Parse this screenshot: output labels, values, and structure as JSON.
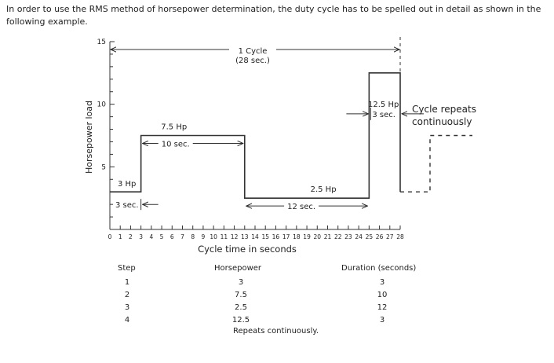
{
  "intro_text": "In order to use the RMS method of horsepower determination, the duty cycle has to be spelled out in detail as shown in the following example.",
  "chart_data": {
    "type": "step",
    "title": "",
    "xlabel": "Cycle time in seconds",
    "ylabel": "Horsepower load",
    "xlim": [
      0,
      28
    ],
    "ylim": [
      0,
      15
    ],
    "x_ticks": [
      0,
      1,
      2,
      3,
      4,
      5,
      6,
      7,
      8,
      9,
      10,
      11,
      12,
      13,
      14,
      15,
      16,
      17,
      18,
      19,
      20,
      21,
      22,
      23,
      24,
      25,
      26,
      27,
      28
    ],
    "y_ticks": [
      5,
      10,
      15
    ],
    "segments": [
      {
        "step": 1,
        "hp": 3,
        "start": 0,
        "end": 3,
        "hp_label": "3 Hp",
        "dur_label": "3 sec."
      },
      {
        "step": 2,
        "hp": 7.5,
        "start": 3,
        "end": 13,
        "hp_label": "7.5 Hp",
        "dur_label": "10 sec."
      },
      {
        "step": 3,
        "hp": 2.5,
        "start": 13,
        "end": 25,
        "hp_label": "2.5 Hp",
        "dur_label": "12 sec."
      },
      {
        "step": 4,
        "hp": 12.5,
        "start": 25,
        "end": 28,
        "hp_label": "12.5 Hp",
        "dur_label": "3 sec."
      }
    ],
    "cycle_label_line1": "1 Cycle",
    "cycle_label_line2": "(28 sec.)",
    "repeat_label_line1": "Cycle repeats",
    "repeat_label_line2": "continuously"
  },
  "table": {
    "headers": [
      "Step",
      "Horsepower",
      "Duration (seconds)"
    ],
    "steps": [
      "1",
      "2",
      "3",
      "4"
    ],
    "horsepower": [
      "3",
      "7.5",
      "2.5",
      "12.5"
    ],
    "durations": [
      "3",
      "10",
      "12",
      "3"
    ],
    "footer": "Repeats continuously."
  }
}
